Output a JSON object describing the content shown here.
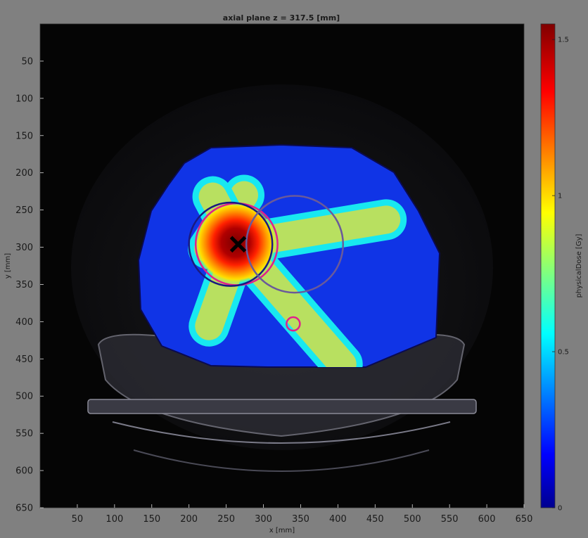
{
  "chart_data": {
    "type": "heatmap",
    "title": "axial plane z = 317.5 [mm]",
    "xlabel": "x [mm]",
    "ylabel": "y [mm]",
    "xlim": [
      0,
      650
    ],
    "ylim": [
      0,
      650
    ],
    "y_reversed": true,
    "xticks": [
      50,
      100,
      150,
      200,
      250,
      300,
      350,
      400,
      450,
      500,
      550,
      600,
      650
    ],
    "yticks": [
      50,
      100,
      150,
      200,
      250,
      300,
      350,
      400,
      450,
      500,
      550,
      600,
      650
    ],
    "colorbar": {
      "label": "physicalDose [Gy]",
      "range": [
        0,
        1.55
      ],
      "ticks": [
        0,
        0.5,
        1,
        1.5
      ],
      "colormap": "jet"
    },
    "isocenter_marker": {
      "x": 266,
      "y": 296
    },
    "beams": [
      {
        "x1": 226,
        "y1": 302,
        "x2": 274,
        "y2": 230
      },
      {
        "x1": 266,
        "y1": 296,
        "x2": 465,
        "y2": 263
      },
      {
        "x1": 266,
        "y1": 296,
        "x2": 406,
        "y2": 457
      },
      {
        "x1": 266,
        "y1": 296,
        "x2": 227,
        "y2": 406
      },
      {
        "x1": 266,
        "y1": 296,
        "x2": 232,
        "y2": 232
      }
    ],
    "contours": [
      {
        "name": "",
        "color": "#e0208c",
        "cx": 264,
        "cy": 296,
        "r": 55
      },
      {
        "name": "",
        "color": "#1a1a80",
        "cx": 256,
        "cy": 296,
        "r": 56
      },
      {
        "name": "",
        "color": "#6a5a9a",
        "cx": 342,
        "cy": 296,
        "r": 65
      },
      {
        "name": "",
        "color": "#e0208c",
        "cx": 340,
        "cy": 403,
        "r": 9
      }
    ],
    "colors": {
      "background": "#808080",
      "axes_background": "#050505",
      "dose_low": "#1030e0",
      "dose_high": "#800000"
    }
  }
}
